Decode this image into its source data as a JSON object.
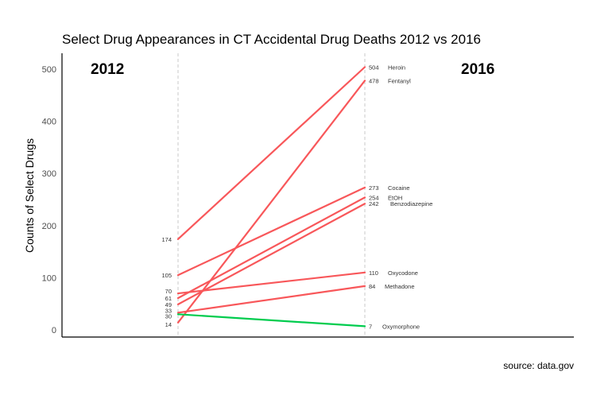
{
  "chart_data": {
    "type": "line",
    "title": "Select Drug Appearances in CT Accidental Drug Deaths 2012 vs 2016",
    "ylabel": "Counts of Select Drugs",
    "xlabel": "",
    "categories": [
      "2012",
      "2016"
    ],
    "ylim": [
      -15,
      530
    ],
    "yticks": [
      0,
      100,
      200,
      300,
      400,
      500
    ],
    "grid": false,
    "source": "source: data.gov",
    "colors": {
      "increase": "#F8575A",
      "decrease": "#00CC4E",
      "divider": "#c8c8c8"
    },
    "series": [
      {
        "name": "Heroin",
        "values": [
          174,
          504
        ],
        "left_label": "174",
        "right_label": "504",
        "trend": "increase"
      },
      {
        "name": "Fentanyl",
        "values": [
          14,
          478
        ],
        "left_label": "14",
        "right_label": "478",
        "trend": "increase"
      },
      {
        "name": "Cocaine",
        "values": [
          105,
          273
        ],
        "left_label": "105",
        "right_label": "273",
        "trend": "increase"
      },
      {
        "name": "EtOH",
        "values": [
          61,
          254
        ],
        "left_label": "61",
        "right_label": "254",
        "trend": "increase"
      },
      {
        "name": "Benzodiazepine",
        "values": [
          49,
          242
        ],
        "left_label": "49",
        "right_label": "242",
        "trend": "increase"
      },
      {
        "name": "Oxycodone",
        "values": [
          70,
          110
        ],
        "left_label": "70",
        "right_label": "110",
        "trend": "increase"
      },
      {
        "name": "Methadone",
        "values": [
          33,
          84
        ],
        "left_label": "33",
        "right_label": "84",
        "trend": "increase"
      },
      {
        "name": "Oxymorphone",
        "values": [
          30,
          7
        ],
        "left_label": "30",
        "right_label": "7",
        "trend": "decrease"
      }
    ]
  }
}
